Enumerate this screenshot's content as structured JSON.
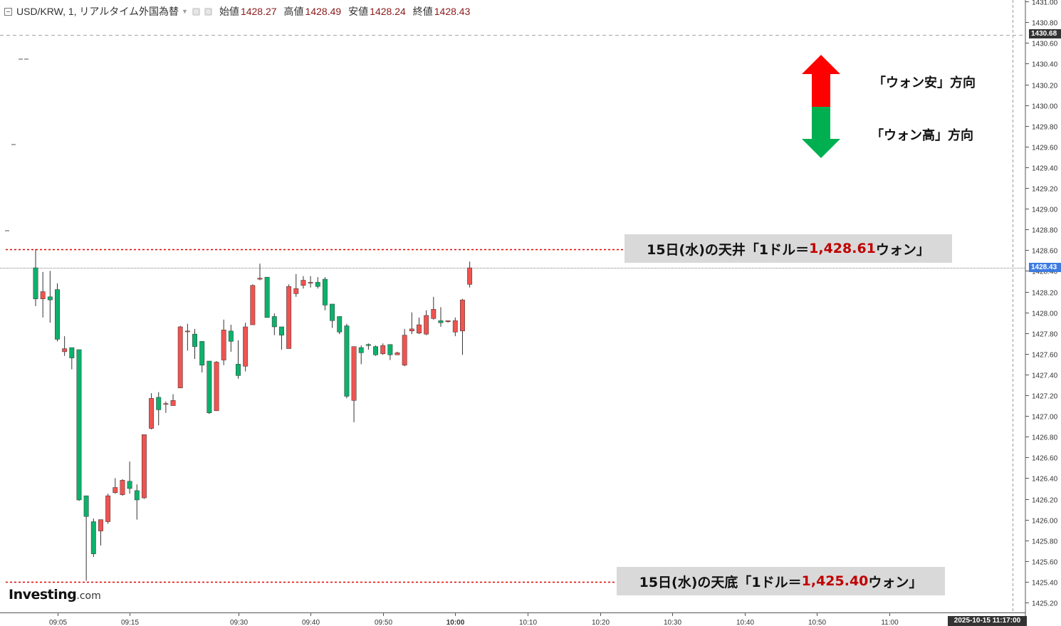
{
  "header": {
    "symbol_title": "USD/KRW, 1, リアルタイム外国為替",
    "open_label": "始値",
    "open_value": "1428.27",
    "high_label": "高値",
    "high_value": "1428.49",
    "low_label": "安値",
    "low_value": "1428.24",
    "close_label": "終値",
    "close_value": "1428.43"
  },
  "badges": {
    "top_line": "1430.68",
    "current_price": "1428.43",
    "cursor_time": "2025-10-15 11:17:00"
  },
  "annotations": {
    "high": {
      "prefix": "15日(水)の天井「1ドル＝",
      "value": "1,428.61",
      "suffix": "ウォン」"
    },
    "low": {
      "prefix": "15日(水)の天底「1ドル＝",
      "value": "1,425.40",
      "suffix": "ウォン」"
    },
    "legend_up": "「ウォン安」方向",
    "legend_down": "「ウォン高」方向"
  },
  "brand": {
    "main": "Investing",
    "domain": ".com"
  },
  "colors": {
    "up_candle": "#f05350",
    "down_candle": "#0cb16b",
    "level_line": "#e00000",
    "arrow_up": "#ff0000",
    "arrow_down": "#00b050",
    "current_price_badge": "#3d7be0"
  },
  "chart_data": {
    "type": "candlestick",
    "ylim": [
      1425.2,
      1431.0
    ],
    "y_ticks": [
      "1425.20",
      "1425.40",
      "1425.60",
      "1425.80",
      "1426.00",
      "1426.20",
      "1426.40",
      "1426.60",
      "1426.80",
      "1427.00",
      "1427.20",
      "1427.40",
      "1427.60",
      "1427.80",
      "1428.00",
      "1428.20",
      "1428.40",
      "1428.60",
      "1428.80",
      "1429.00",
      "1429.20",
      "1429.40",
      "1429.60",
      "1429.80",
      "1430.00",
      "1430.20",
      "1430.40",
      "1430.60",
      "1430.80",
      "1431.00"
    ],
    "x_ticks": [
      "09:05",
      "09:15",
      "09:30",
      "09:40",
      "09:50",
      "10:00",
      "10:10",
      "10:20",
      "10:30",
      "10:40",
      "10:50",
      "11:00"
    ],
    "time_range_minutes": [
      5,
      125
    ],
    "ref_lines": {
      "high": 1428.61,
      "low": 1425.4,
      "current": 1428.43,
      "top": 1430.68
    },
    "candles": [
      {
        "t": "09:02",
        "o": 1428.43,
        "h": 1428.61,
        "l": 1428.06,
        "c": 1428.13
      },
      {
        "t": "09:03",
        "o": 1428.13,
        "h": 1428.39,
        "l": 1427.95,
        "c": 1428.2
      },
      {
        "t": "09:04",
        "o": 1428.15,
        "h": 1428.4,
        "l": 1427.9,
        "c": 1428.12
      },
      {
        "t": "09:05",
        "o": 1428.22,
        "h": 1428.28,
        "l": 1427.72,
        "c": 1427.74
      },
      {
        "t": "09:06",
        "o": 1427.62,
        "h": 1427.77,
        "l": 1427.58,
        "c": 1427.65
      },
      {
        "t": "09:07",
        "o": 1427.66,
        "h": 1427.66,
        "l": 1427.45,
        "c": 1427.56
      },
      {
        "t": "09:08",
        "o": 1427.64,
        "h": 1427.64,
        "l": 1426.18,
        "c": 1426.19
      },
      {
        "t": "09:09",
        "o": 1426.23,
        "h": 1426.23,
        "l": 1425.41,
        "c": 1426.03
      },
      {
        "t": "09:10",
        "o": 1425.98,
        "h": 1426.01,
        "l": 1425.64,
        "c": 1425.67
      },
      {
        "t": "09:11",
        "o": 1425.89,
        "h": 1426.0,
        "l": 1425.75,
        "c": 1426.0
      },
      {
        "t": "09:12",
        "o": 1425.98,
        "h": 1426.25,
        "l": 1425.96,
        "c": 1426.23
      },
      {
        "t": "09:13",
        "o": 1426.26,
        "h": 1426.4,
        "l": 1426.25,
        "c": 1426.31
      },
      {
        "t": "09:14",
        "o": 1426.24,
        "h": 1426.39,
        "l": 1426.23,
        "c": 1426.38
      },
      {
        "t": "09:15",
        "o": 1426.37,
        "h": 1426.56,
        "l": 1426.25,
        "c": 1426.3
      },
      {
        "t": "09:16",
        "o": 1426.28,
        "h": 1426.34,
        "l": 1426.0,
        "c": 1426.19
      },
      {
        "t": "09:17",
        "o": 1426.21,
        "h": 1426.82,
        "l": 1426.2,
        "c": 1426.82
      },
      {
        "t": "09:18",
        "o": 1426.88,
        "h": 1427.22,
        "l": 1426.87,
        "c": 1427.17
      },
      {
        "t": "09:19",
        "o": 1427.18,
        "h": 1427.23,
        "l": 1426.91,
        "c": 1427.06
      },
      {
        "t": "09:20",
        "o": 1427.12,
        "h": 1427.14,
        "l": 1427.03,
        "c": 1427.12
      },
      {
        "t": "09:21",
        "o": 1427.1,
        "h": 1427.21,
        "l": 1427.1,
        "c": 1427.15
      },
      {
        "t": "09:22",
        "o": 1427.27,
        "h": 1427.87,
        "l": 1427.27,
        "c": 1427.86
      },
      {
        "t": "09:23",
        "o": 1427.82,
        "h": 1427.89,
        "l": 1427.63,
        "c": 1427.82
      },
      {
        "t": "09:24",
        "o": 1427.79,
        "h": 1427.84,
        "l": 1427.55,
        "c": 1427.67
      },
      {
        "t": "09:25",
        "o": 1427.72,
        "h": 1427.72,
        "l": 1427.42,
        "c": 1427.49
      },
      {
        "t": "09:26",
        "o": 1427.53,
        "h": 1427.53,
        "l": 1427.02,
        "c": 1427.03
      },
      {
        "t": "09:27",
        "o": 1427.05,
        "h": 1427.53,
        "l": 1427.05,
        "c": 1427.52
      },
      {
        "t": "09:28",
        "o": 1427.54,
        "h": 1427.93,
        "l": 1427.49,
        "c": 1427.83
      },
      {
        "t": "09:29",
        "o": 1427.82,
        "h": 1427.88,
        "l": 1427.62,
        "c": 1427.72
      },
      {
        "t": "09:30",
        "o": 1427.5,
        "h": 1427.73,
        "l": 1427.36,
        "c": 1427.39
      },
      {
        "t": "09:31",
        "o": 1427.48,
        "h": 1427.9,
        "l": 1427.43,
        "c": 1427.86
      },
      {
        "t": "09:32",
        "o": 1427.88,
        "h": 1428.27,
        "l": 1427.88,
        "c": 1428.26
      },
      {
        "t": "09:33",
        "o": 1428.32,
        "h": 1428.47,
        "l": 1428.31,
        "c": 1428.33
      },
      {
        "t": "09:34",
        "o": 1428.34,
        "h": 1428.34,
        "l": 1427.95,
        "c": 1427.95
      },
      {
        "t": "09:35",
        "o": 1427.96,
        "h": 1427.99,
        "l": 1427.78,
        "c": 1427.86
      },
      {
        "t": "09:36",
        "o": 1427.86,
        "h": 1427.86,
        "l": 1427.64,
        "c": 1427.78
      },
      {
        "t": "09:37",
        "o": 1427.65,
        "h": 1428.27,
        "l": 1427.65,
        "c": 1428.25
      },
      {
        "t": "09:38",
        "o": 1428.18,
        "h": 1428.37,
        "l": 1428.15,
        "c": 1428.23
      },
      {
        "t": "09:39",
        "o": 1428.26,
        "h": 1428.35,
        "l": 1428.23,
        "c": 1428.31
      },
      {
        "t": "09:40",
        "o": 1428.29,
        "h": 1428.35,
        "l": 1428.24,
        "c": 1428.29
      },
      {
        "t": "09:41",
        "o": 1428.29,
        "h": 1428.34,
        "l": 1428.23,
        "c": 1428.25
      },
      {
        "t": "09:42",
        "o": 1428.32,
        "h": 1428.34,
        "l": 1428.02,
        "c": 1428.07
      },
      {
        "t": "09:43",
        "o": 1428.08,
        "h": 1428.08,
        "l": 1427.85,
        "c": 1427.92
      },
      {
        "t": "09:44",
        "o": 1427.96,
        "h": 1427.96,
        "l": 1427.79,
        "c": 1427.81
      },
      {
        "t": "09:45",
        "o": 1427.87,
        "h": 1427.89,
        "l": 1427.17,
        "c": 1427.19
      },
      {
        "t": "09:46",
        "o": 1427.15,
        "h": 1427.67,
        "l": 1426.94,
        "c": 1427.67
      },
      {
        "t": "09:47",
        "o": 1427.66,
        "h": 1427.68,
        "l": 1427.5,
        "c": 1427.61
      },
      {
        "t": "09:48",
        "o": 1427.69,
        "h": 1427.7,
        "l": 1427.64,
        "c": 1427.68
      },
      {
        "t": "09:49",
        "o": 1427.67,
        "h": 1427.68,
        "l": 1427.58,
        "c": 1427.59
      },
      {
        "t": "09:50",
        "o": 1427.6,
        "h": 1427.7,
        "l": 1427.59,
        "c": 1427.68
      },
      {
        "t": "09:51",
        "o": 1427.69,
        "h": 1427.69,
        "l": 1427.54,
        "c": 1427.59
      },
      {
        "t": "09:52",
        "o": 1427.59,
        "h": 1427.62,
        "l": 1427.59,
        "c": 1427.61
      },
      {
        "t": "09:53",
        "o": 1427.49,
        "h": 1427.84,
        "l": 1427.48,
        "c": 1427.78
      },
      {
        "t": "09:54",
        "o": 1427.82,
        "h": 1428.0,
        "l": 1427.79,
        "c": 1427.84
      },
      {
        "t": "09:55",
        "o": 1427.8,
        "h": 1427.95,
        "l": 1427.79,
        "c": 1427.88
      },
      {
        "t": "09:56",
        "o": 1427.79,
        "h": 1428.02,
        "l": 1427.78,
        "c": 1427.97
      },
      {
        "t": "09:57",
        "o": 1427.94,
        "h": 1428.15,
        "l": 1427.93,
        "c": 1428.03
      },
      {
        "t": "09:58",
        "o": 1427.92,
        "h": 1428.05,
        "l": 1427.86,
        "c": 1427.9
      },
      {
        "t": "09:59",
        "o": 1427.91,
        "h": 1427.92,
        "l": 1427.9,
        "c": 1427.92
      },
      {
        "t": "10:00",
        "o": 1427.81,
        "h": 1427.95,
        "l": 1427.77,
        "c": 1427.92
      },
      {
        "t": "10:01",
        "o": 1427.82,
        "h": 1428.13,
        "l": 1427.59,
        "c": 1428.12
      },
      {
        "t": "10:02",
        "o": 1428.27,
        "h": 1428.49,
        "l": 1428.24,
        "c": 1428.43
      }
    ]
  }
}
